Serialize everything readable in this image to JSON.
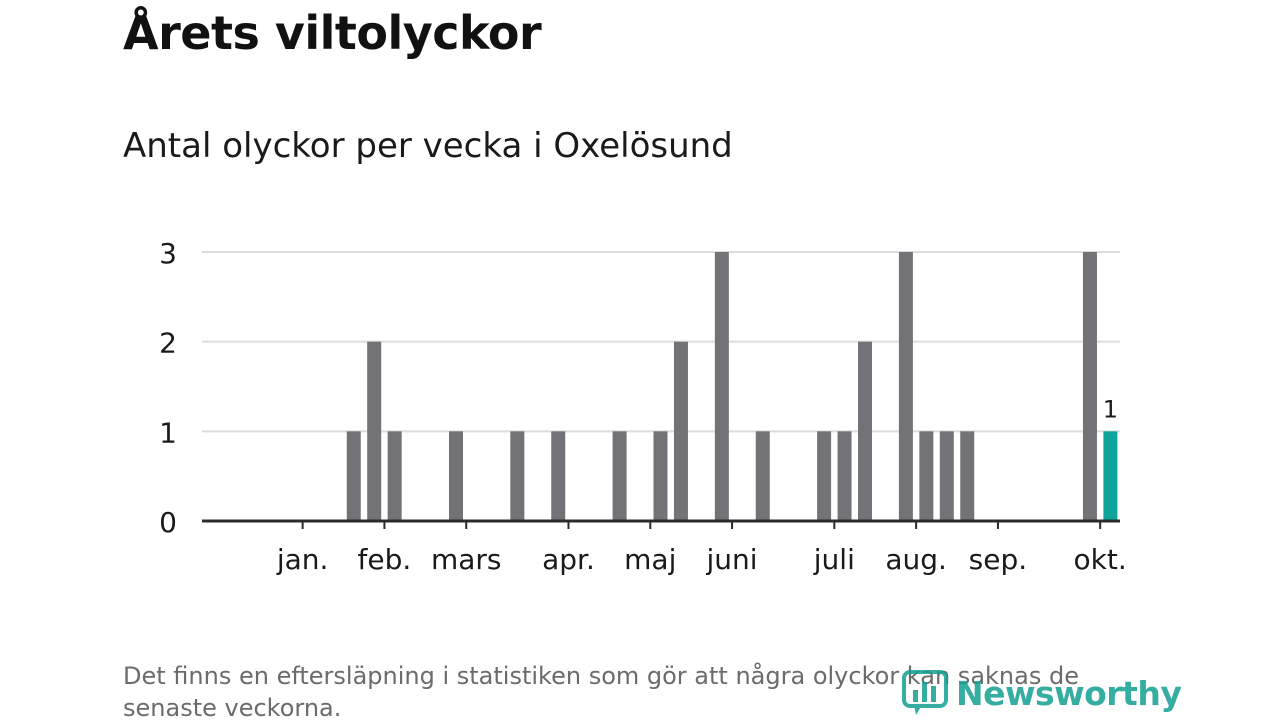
{
  "title": "Årets viltolyckor",
  "chart_data": {
    "type": "bar",
    "title": "Antal olyckor per vecka i Oxelösund",
    "xlabel": "",
    "ylabel": "",
    "ylim": [
      0,
      3
    ],
    "y_ticks": [
      0,
      1,
      2,
      3
    ],
    "x_unit": "week",
    "weeks": [
      1,
      2,
      3,
      4,
      5,
      6,
      7,
      8,
      9,
      10,
      11,
      12,
      13,
      14,
      15,
      16,
      17,
      18,
      19,
      20,
      21,
      22,
      23,
      24,
      25,
      26,
      27,
      28,
      29,
      30,
      31,
      32,
      33,
      34,
      35,
      36,
      37,
      38,
      39,
      40,
      41,
      42,
      43
    ],
    "values": [
      0,
      0,
      0,
      0,
      0,
      1,
      2,
      1,
      0,
      0,
      1,
      0,
      0,
      1,
      0,
      1,
      0,
      0,
      1,
      0,
      1,
      2,
      0,
      3,
      0,
      1,
      0,
      0,
      1,
      1,
      2,
      0,
      3,
      1,
      1,
      1,
      0,
      0,
      0,
      0,
      0,
      3,
      1
    ],
    "highlight_week": 43,
    "highlight_label": "1",
    "month_labels": [
      {
        "label": "jan.",
        "week": 3.5
      },
      {
        "label": "feb.",
        "week": 7.5
      },
      {
        "label": "mars",
        "week": 11.5
      },
      {
        "label": "apr.",
        "week": 16.5
      },
      {
        "label": "maj",
        "week": 20.5
      },
      {
        "label": "juni",
        "week": 24.5
      },
      {
        "label": "juli",
        "week": 29.5
      },
      {
        "label": "aug.",
        "week": 33.5
      },
      {
        "label": "sep.",
        "week": 37.5
      },
      {
        "label": "okt.",
        "week": 42.5
      }
    ],
    "bar_color": "#737277",
    "highlight_color": "#0fa39a",
    "grid": true
  },
  "footnote": "Det finns en eftersläpning i statistiken som gör att några olyckor kan saknas de senaste veckorna.",
  "logo": {
    "text": "Newsworthy",
    "color": "#12a191",
    "icon": "bar-chart-bubble-icon"
  }
}
